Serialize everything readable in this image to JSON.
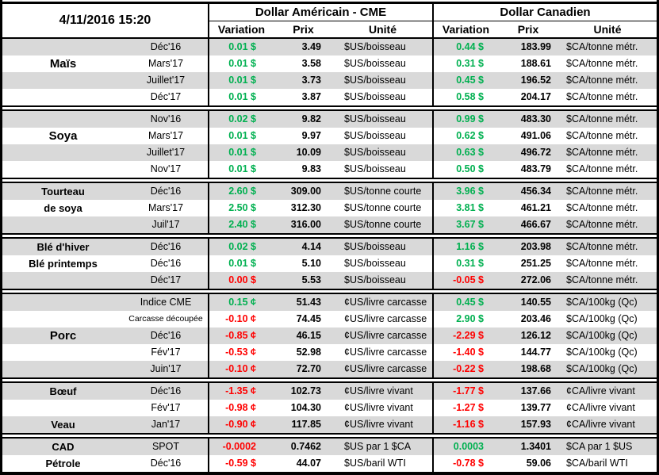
{
  "palette": {
    "green": "#00B050",
    "red": "#FF0000",
    "row_gray": "#D9D9D9",
    "row_white": "#FFFFFF",
    "border_black": "#000000"
  },
  "header": {
    "timestamp": "4/11/2016 15:20",
    "us_group": "Dollar Américain - CME",
    "ca_group": "Dollar Canadien",
    "columns": {
      "variation": "Variation",
      "prix": "Prix",
      "unite": "Unité"
    }
  },
  "sections": [
    {
      "name": "mais",
      "rows": [
        {
          "label": "",
          "big": false,
          "month": "Déc'16",
          "us_var": "0.01 $",
          "us_prix": "3.49",
          "us_unit": "$US/boisseau",
          "ca_var": "0.44 $",
          "ca_prix": "183.99",
          "ca_unit": "$CA/tonne métr."
        },
        {
          "label": "Maïs",
          "big": true,
          "month": "Mars'17",
          "us_var": "0.01 $",
          "us_prix": "3.58",
          "us_unit": "$US/boisseau",
          "ca_var": "0.31 $",
          "ca_prix": "188.61",
          "ca_unit": "$CA/tonne métr."
        },
        {
          "label": "",
          "big": false,
          "month": "Juillet'17",
          "us_var": "0.01 $",
          "us_prix": "3.73",
          "us_unit": "$US/boisseau",
          "ca_var": "0.45 $",
          "ca_prix": "196.52",
          "ca_unit": "$CA/tonne métr."
        },
        {
          "label": "",
          "big": false,
          "month": "Déc'17",
          "us_var": "0.01 $",
          "us_prix": "3.87",
          "us_unit": "$US/boisseau",
          "ca_var": "0.58 $",
          "ca_prix": "204.17",
          "ca_unit": "$CA/tonne métr."
        }
      ]
    },
    {
      "name": "soya",
      "rows": [
        {
          "label": "",
          "big": false,
          "month": "Nov'16",
          "us_var": "0.02 $",
          "us_prix": "9.82",
          "us_unit": "$US/boisseau",
          "ca_var": "0.99 $",
          "ca_prix": "483.30",
          "ca_unit": "$CA/tonne métr."
        },
        {
          "label": "Soya",
          "big": true,
          "month": "Mars'17",
          "us_var": "0.01 $",
          "us_prix": "9.97",
          "us_unit": "$US/boisseau",
          "ca_var": "0.62 $",
          "ca_prix": "491.06",
          "ca_unit": "$CA/tonne métr."
        },
        {
          "label": "",
          "big": false,
          "month": "Juillet'17",
          "us_var": "0.01 $",
          "us_prix": "10.09",
          "us_unit": "$US/boisseau",
          "ca_var": "0.63 $",
          "ca_prix": "496.72",
          "ca_unit": "$CA/tonne métr."
        },
        {
          "label": "",
          "big": false,
          "month": "Nov'17",
          "us_var": "0.01 $",
          "us_prix": "9.83",
          "us_unit": "$US/boisseau",
          "ca_var": "0.50 $",
          "ca_prix": "483.79",
          "ca_unit": "$CA/tonne métr."
        }
      ]
    },
    {
      "name": "tourteau-de-soya",
      "rows": [
        {
          "label": "Tourteau",
          "big": false,
          "month": "Déc'16",
          "us_var": "2.60 $",
          "us_prix": "309.00",
          "us_unit": "$US/tonne courte",
          "ca_var": "3.96 $",
          "ca_prix": "456.34",
          "ca_unit": "$CA/tonne métr."
        },
        {
          "label": "de soya",
          "big": false,
          "month": "Mars'17",
          "us_var": "2.50 $",
          "us_prix": "312.30",
          "us_unit": "$US/tonne courte",
          "ca_var": "3.81 $",
          "ca_prix": "461.21",
          "ca_unit": "$CA/tonne métr."
        },
        {
          "label": "",
          "big": false,
          "month": "Juil'17",
          "us_var": "2.40 $",
          "us_prix": "316.00",
          "us_unit": "$US/tonne courte",
          "ca_var": "3.67 $",
          "ca_prix": "466.67",
          "ca_unit": "$CA/tonne métr."
        }
      ]
    },
    {
      "name": "ble",
      "rows": [
        {
          "label": "Blé d'hiver",
          "big": false,
          "month": "Déc'16",
          "us_var": "0.02 $",
          "us_prix": "4.14",
          "us_unit": "$US/boisseau",
          "ca_var": "1.16 $",
          "ca_prix": "203.98",
          "ca_unit": "$CA/tonne métr."
        },
        {
          "label": "Blé printemps",
          "big": false,
          "month": "Déc'16",
          "us_var": "0.01 $",
          "us_prix": "5.10",
          "us_unit": "$US/boisseau",
          "ca_var": "0.31 $",
          "ca_prix": "251.25",
          "ca_unit": "$CA/tonne métr."
        },
        {
          "label": "",
          "big": false,
          "month": "Déc'17",
          "us_var": "0.00 $",
          "us_prix": "5.53",
          "us_unit": "$US/boisseau",
          "ca_var": "-0.05 $",
          "ca_prix": "272.06",
          "ca_unit": "$CA/tonne métr."
        }
      ]
    },
    {
      "name": "porc",
      "rows": [
        {
          "label": "",
          "big": false,
          "month": "Indice CME",
          "us_var": "0.15 ¢",
          "us_prix": "51.43",
          "us_unit": "¢US/livre carcasse",
          "ca_var": "0.45 $",
          "ca_prix": "140.55",
          "ca_unit": "$CA/100kg (Qc)"
        },
        {
          "label": "",
          "big": false,
          "month": "Carcasse découpée",
          "us_var": "-0.10 ¢",
          "us_prix": "74.45",
          "us_unit": "¢US/livre carcasse",
          "ca_var": "2.90 $",
          "ca_prix": "203.46",
          "ca_unit": "$CA/100kg (Qc)"
        },
        {
          "label": "Porc",
          "big": true,
          "month": "Déc'16",
          "us_var": "-0.85 ¢",
          "us_prix": "46.15",
          "us_unit": "¢US/livre carcasse",
          "ca_var": "-2.29 $",
          "ca_prix": "126.12",
          "ca_unit": "$CA/100kg (Qc)"
        },
        {
          "label": "",
          "big": false,
          "month": "Fév'17",
          "us_var": "-0.53 ¢",
          "us_prix": "52.98",
          "us_unit": "¢US/livre carcasse",
          "ca_var": "-1.40 $",
          "ca_prix": "144.77",
          "ca_unit": "$CA/100kg (Qc)"
        },
        {
          "label": "",
          "big": false,
          "month": "Juin'17",
          "us_var": "-0.10 ¢",
          "us_prix": "72.70",
          "us_unit": "¢US/livre carcasse",
          "ca_var": "-0.22 $",
          "ca_prix": "198.68",
          "ca_unit": "$CA/100kg (Qc)"
        }
      ]
    },
    {
      "name": "boeuf-veau",
      "rows": [
        {
          "label": "Bœuf",
          "big": false,
          "month": "Déc'16",
          "us_var": "-1.35 ¢",
          "us_prix": "102.73",
          "us_unit": "¢US/livre vivant",
          "ca_var": "-1.77 $",
          "ca_prix": "137.66",
          "ca_unit": "¢CA/livre vivant"
        },
        {
          "label": "",
          "big": false,
          "month": "Fév'17",
          "us_var": "-0.98 ¢",
          "us_prix": "104.30",
          "us_unit": "¢US/livre vivant",
          "ca_var": "-1.27 $",
          "ca_prix": "139.77",
          "ca_unit": "¢CA/livre vivant"
        },
        {
          "label": "Veau",
          "big": false,
          "month": "Jan'17",
          "us_var": "-0.90 ¢",
          "us_prix": "117.85",
          "us_unit": "¢US/livre vivant",
          "ca_var": "-1.16 $",
          "ca_prix": "157.93",
          "ca_unit": "¢CA/livre vivant"
        }
      ]
    },
    {
      "name": "cad-petrole",
      "rows": [
        {
          "label": "CAD",
          "big": false,
          "month": "SPOT",
          "us_var": "-0.0002",
          "us_prix": "0.7462",
          "us_unit": "$US par 1 $CA",
          "ca_var": "0.0003",
          "ca_prix": "1.3401",
          "ca_unit": "$CA par 1 $US"
        },
        {
          "label": "Pétrole",
          "big": false,
          "month": "Déc'16",
          "us_var": "-0.59 $",
          "us_prix": "44.07",
          "us_unit": "$US/baril WTI",
          "ca_var": "-0.78 $",
          "ca_prix": "59.06",
          "ca_unit": "$CA/baril WTI"
        }
      ]
    }
  ]
}
